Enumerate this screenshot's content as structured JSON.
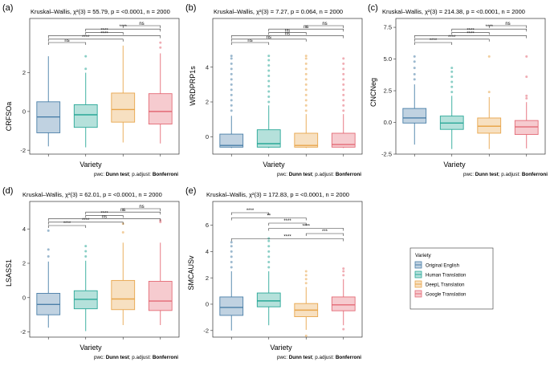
{
  "colors": {
    "Original English": "#4a7fa8",
    "Human Translation": "#2aa898",
    "DeepL Translation": "#e8a64c",
    "Google Translation": "#e46a76"
  },
  "footer": {
    "pwc_prefix": "pwc:",
    "pwc_method": "Dunn test",
    "adjust_prefix": "; p.adjust:",
    "adjust_method": "Bonferroni"
  },
  "legend": {
    "title": "Variety",
    "items": [
      "Original English",
      "Human Translation",
      "DeepL Translation",
      "Google Translation"
    ]
  },
  "chart_data": [
    {
      "panel": "(a)",
      "type": "boxplot",
      "title": "Kruskal–Wallis, χ²(3) = 55.79, p = <0.0001, n = 2000",
      "xlabel": "Variety",
      "ylabel": "CRFSOa",
      "ylim": [
        -2.2,
        4.8
      ],
      "yticks": [
        -2,
        0,
        2
      ],
      "groups": [
        {
          "name": "Original English",
          "q1": -1.1,
          "median": -0.28,
          "q3": 0.5,
          "whisker_low": -1.8,
          "whisker_high": 2.85,
          "outliers": []
        },
        {
          "name": "Human Translation",
          "q1": -0.82,
          "median": -0.17,
          "q3": 0.35,
          "whisker_low": -1.85,
          "whisker_high": 2.0,
          "outliers": [
            2.2,
            2.85
          ]
        },
        {
          "name": "DeepL Translation",
          "q1": -0.55,
          "median": 0.1,
          "q3": 0.95,
          "whisker_low": -1.6,
          "whisker_high": 3.4,
          "outliers": []
        },
        {
          "name": "Google Translation",
          "q1": -0.65,
          "median": 0.0,
          "q3": 0.92,
          "whisker_low": -1.65,
          "whisker_high": 3.0,
          "outliers": [
            3.3,
            3.55
          ]
        }
      ],
      "comparisons": [
        {
          "a": 1,
          "b": 2,
          "label": "ns"
        },
        {
          "a": 1,
          "b": 3,
          "label": "****"
        },
        {
          "a": 1,
          "b": 4,
          "label": "****"
        },
        {
          "a": 2,
          "b": 3,
          "label": "****"
        },
        {
          "a": 2,
          "b": 4,
          "label": "****"
        },
        {
          "a": 3,
          "b": 4,
          "label": "ns"
        }
      ]
    },
    {
      "panel": "(b)",
      "type": "boxplot",
      "title": "Kruskal–Wallis, χ²(3) = 7.27, p = 0.064, n = 2000",
      "xlabel": "Variety",
      "ylabel": "WRDPRP1s",
      "ylim": [
        -1.0,
        6.8
      ],
      "yticks": [
        0,
        2,
        4
      ],
      "groups": [
        {
          "name": "Original English",
          "q1": -0.6,
          "median": -0.5,
          "q3": 0.15,
          "whisker_low": -0.65,
          "whisker_high": 1.2,
          "outliers": [
            1.5,
            1.8,
            2.1,
            2.4,
            2.7,
            3.0,
            3.3,
            3.6,
            3.9,
            4.2,
            4.5,
            4.65
          ]
        },
        {
          "name": "Human Translation",
          "q1": -0.6,
          "median": -0.4,
          "q3": 0.4,
          "whisker_low": -0.65,
          "whisker_high": 1.8,
          "outliers": [
            2.0,
            2.3,
            2.6,
            2.9,
            3.2,
            3.5,
            3.8,
            4.1,
            4.4,
            4.65
          ]
        },
        {
          "name": "DeepL Translation",
          "q1": -0.6,
          "median": -0.5,
          "q3": 0.2,
          "whisker_low": -0.65,
          "whisker_high": 1.3,
          "outliers": [
            1.5,
            1.8,
            2.1,
            2.4,
            2.7,
            3.0,
            3.3,
            3.6,
            3.9,
            4.2,
            4.5,
            4.65
          ]
        },
        {
          "name": "Google Translation",
          "q1": -0.6,
          "median": -0.45,
          "q3": 0.2,
          "whisker_low": -0.65,
          "whisker_high": 1.3,
          "outliers": [
            1.5,
            1.8,
            2.1,
            2.4,
            2.7,
            3.0,
            3.3,
            3.6,
            3.9,
            4.2,
            4.5
          ]
        }
      ],
      "comparisons": [
        {
          "a": 1,
          "b": 2,
          "label": "ns"
        },
        {
          "a": 1,
          "b": 3,
          "label": "ns"
        },
        {
          "a": 1,
          "b": 4,
          "label": "ns"
        },
        {
          "a": 2,
          "b": 3,
          "label": "ns"
        },
        {
          "a": 2,
          "b": 4,
          "label": "ns"
        },
        {
          "a": 3,
          "b": 4,
          "label": "ns"
        }
      ]
    },
    {
      "panel": "(c)",
      "type": "boxplot",
      "title": "Kruskal–Wallis, χ²(3) = 214.38, p = <0.0001, n = 2000",
      "xlabel": "Variety",
      "ylabel": "CNCNeg",
      "ylim": [
        -2.5,
        8.2
      ],
      "yticks": [
        -2.5,
        0.0,
        2.5,
        5.0,
        7.5
      ],
      "groups": [
        {
          "name": "Original English",
          "q1": -0.05,
          "median": 0.35,
          "q3": 1.1,
          "whisker_low": -1.75,
          "whisker_high": 3.0,
          "outliers": [
            3.4,
            3.8,
            4.3,
            4.8,
            5.2
          ]
        },
        {
          "name": "Human Translation",
          "q1": -0.55,
          "median": -0.05,
          "q3": 0.5,
          "whisker_low": -2.1,
          "whisker_high": 2.1,
          "outliers": [
            2.4,
            2.8,
            3.2,
            3.6,
            4.0,
            4.3
          ]
        },
        {
          "name": "DeepL Translation",
          "q1": -0.85,
          "median": -0.3,
          "q3": 0.35,
          "whisker_low": -2.1,
          "whisker_high": 2.0,
          "outliers": [
            2.4,
            5.2
          ]
        },
        {
          "name": "Google Translation",
          "q1": -0.95,
          "median": -0.35,
          "q3": 0.15,
          "whisker_low": -2.05,
          "whisker_high": 1.6,
          "outliers": [
            1.9,
            2.1,
            3.6,
            5.2
          ]
        }
      ],
      "comparisons": [
        {
          "a": 1,
          "b": 2,
          "label": "****"
        },
        {
          "a": 1,
          "b": 3,
          "label": "****"
        },
        {
          "a": 1,
          "b": 4,
          "label": "****"
        },
        {
          "a": 2,
          "b": 3,
          "label": "****"
        },
        {
          "a": 2,
          "b": 4,
          "label": "****"
        },
        {
          "a": 3,
          "b": 4,
          "label": "ns"
        }
      ]
    },
    {
      "panel": "(d)",
      "type": "boxplot",
      "title": "Kruskal–Wallis, χ²(3) = 62.01, p = <0.0001, n = 2000",
      "xlabel": "Variety",
      "ylabel": "LSASS1",
      "ylim": [
        -2.3,
        5.6
      ],
      "yticks": [
        -2,
        0,
        2,
        4
      ],
      "groups": [
        {
          "name": "Original English",
          "q1": -1.0,
          "median": -0.4,
          "q3": 0.25,
          "whisker_low": -1.75,
          "whisker_high": 2.1,
          "outliers": [
            2.4,
            2.8,
            3.9
          ]
        },
        {
          "name": "Human Translation",
          "q1": -0.65,
          "median": -0.1,
          "q3": 0.4,
          "whisker_low": -1.95,
          "whisker_high": 2.15,
          "outliers": [
            2.4,
            2.7,
            3.0
          ]
        },
        {
          "name": "DeepL Translation",
          "q1": -0.7,
          "median": -0.08,
          "q3": 1.0,
          "whisker_low": -1.6,
          "whisker_high": 3.2,
          "outliers": [
            3.8,
            4.3
          ]
        },
        {
          "name": "Google Translation",
          "q1": -0.75,
          "median": -0.2,
          "q3": 0.95,
          "whisker_low": -1.6,
          "whisker_high": 3.2,
          "outliers": [
            4.4,
            4.5
          ]
        }
      ],
      "comparisons": [
        {
          "a": 1,
          "b": 2,
          "label": "****"
        },
        {
          "a": 1,
          "b": 3,
          "label": "****"
        },
        {
          "a": 1,
          "b": 4,
          "label": "ns"
        },
        {
          "a": 2,
          "b": 3,
          "label": "****"
        },
        {
          "a": 2,
          "b": 4,
          "label": "ns"
        },
        {
          "a": 3,
          "b": 4,
          "label": "ns"
        }
      ]
    },
    {
      "panel": "(e)",
      "type": "boxplot",
      "title": "Kruskal–Wallis, χ²(3) = 172.83, p = <0.0001, n = 2000",
      "xlabel": "Variety",
      "ylabel": "SMCAUSv",
      "ylim": [
        -2.5,
        7.8
      ],
      "yticks": [
        -2,
        0,
        2,
        4,
        6
      ],
      "groups": [
        {
          "name": "Original English",
          "q1": -0.85,
          "median": -0.25,
          "q3": 0.55,
          "whisker_low": -2.0,
          "whisker_high": 2.5,
          "outliers": [
            2.8,
            3.2,
            3.6,
            4.0,
            4.4,
            4.7
          ]
        },
        {
          "name": "Human Translation",
          "q1": -0.2,
          "median": 0.25,
          "q3": 0.85,
          "whisker_low": -1.6,
          "whisker_high": 2.5,
          "outliers": [
            2.8,
            3.2,
            3.6,
            4.0,
            4.4,
            4.8,
            5.0
          ]
        },
        {
          "name": "DeepL Translation",
          "q1": -0.95,
          "median": -0.45,
          "q3": 0.05,
          "whisker_low": -1.95,
          "whisker_high": 1.3,
          "outliers": [
            1.6,
            1.9,
            2.2,
            2.5,
            -2.4
          ]
        },
        {
          "name": "Google Translation",
          "q1": -0.5,
          "median": -0.05,
          "q3": 0.55,
          "whisker_low": -1.6,
          "whisker_high": 1.9,
          "outliers": [
            2.2,
            2.5,
            2.7,
            -1.9
          ]
        }
      ],
      "comparisons": [
        {
          "a": 1,
          "b": 2,
          "label": "****"
        },
        {
          "a": 1,
          "b": 3,
          "label": "**"
        },
        {
          "a": 2,
          "b": 3,
          "label": "****"
        },
        {
          "a": 2,
          "b": 4,
          "label": "****"
        },
        {
          "a": 3,
          "b": 4,
          "label": "***"
        },
        {
          "a": 1,
          "b": 4,
          "label": "****"
        }
      ]
    }
  ]
}
